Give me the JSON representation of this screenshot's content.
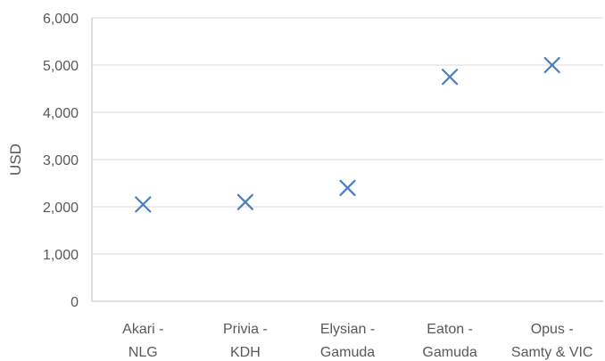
{
  "chart_data": {
    "type": "scatter",
    "title": "",
    "xlabel": "",
    "ylabel": "USD",
    "categories": [
      [
        "Akari -",
        "NLG"
      ],
      [
        "Privia -",
        "KDH"
      ],
      [
        "Elysian -",
        "Gamuda"
      ],
      [
        "Eaton -",
        "Gamuda"
      ],
      [
        "Opus -",
        "Samty & VIC"
      ]
    ],
    "values": [
      2050,
      2100,
      2400,
      4750,
      5000
    ],
    "ylim": [
      0,
      6000
    ],
    "yticks": [
      0,
      1000,
      2000,
      3000,
      4000,
      5000,
      6000
    ],
    "ytick_labels": [
      "0",
      "1,000",
      "2,000",
      "3,000",
      "4,000",
      "5,000",
      "6,000"
    ],
    "marker": "x",
    "grid": true,
    "legend": "none",
    "colors": {
      "marker": "#4a7ebb",
      "grid": "#d9d9d9",
      "axis": "#bfbfbf",
      "text": "#595959"
    }
  }
}
